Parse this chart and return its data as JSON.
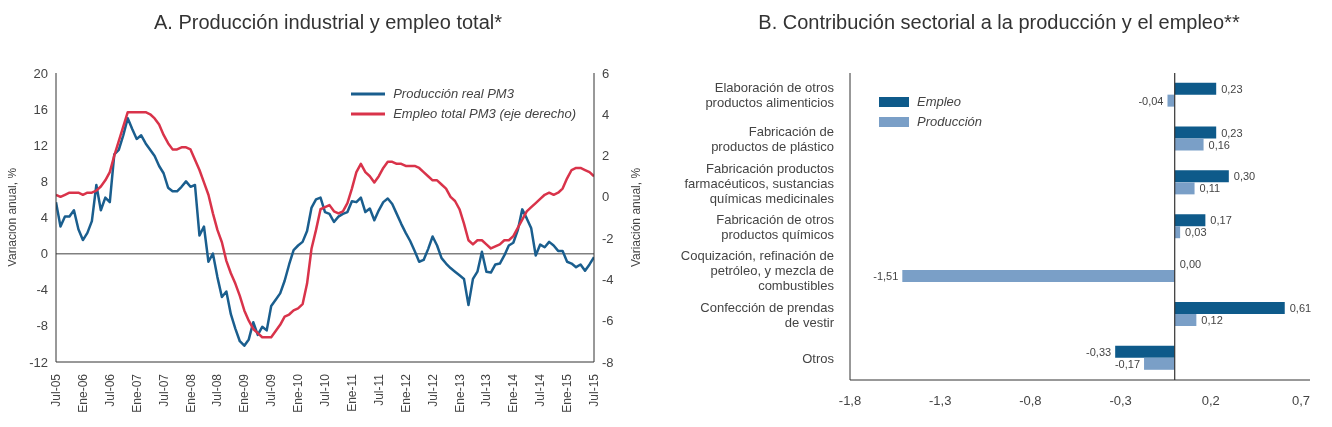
{
  "chart_data": [
    {
      "type": "line",
      "title": "A. Producción industrial y empleo total*",
      "ylabel": "Variación anual, %",
      "y2label": "Variación anual, %",
      "x": [
        "2005-07",
        "2005-08",
        "2005-09",
        "2005-10",
        "2005-11",
        "2005-12",
        "2006-01",
        "2006-02",
        "2006-03",
        "2006-04",
        "2006-05",
        "2006-06",
        "2006-07",
        "2006-08",
        "2006-09",
        "2006-10",
        "2006-11",
        "2006-12",
        "2007-01",
        "2007-02",
        "2007-03",
        "2007-04",
        "2007-05",
        "2007-06",
        "2007-07",
        "2007-08",
        "2007-09",
        "2007-10",
        "2007-11",
        "2007-12",
        "2008-01",
        "2008-02",
        "2008-03",
        "2008-04",
        "2008-05",
        "2008-06",
        "2008-07",
        "2008-08",
        "2008-09",
        "2008-10",
        "2008-11",
        "2008-12",
        "2009-01",
        "2009-02",
        "2009-03",
        "2009-04",
        "2009-05",
        "2009-06",
        "2009-07",
        "2009-08",
        "2009-09",
        "2009-10",
        "2009-11",
        "2009-12",
        "2010-01",
        "2010-02",
        "2010-03",
        "2010-04",
        "2010-05",
        "2010-06",
        "2010-07",
        "2010-08",
        "2010-09",
        "2010-10",
        "2010-11",
        "2010-12",
        "2011-01",
        "2011-02",
        "2011-03",
        "2011-04",
        "2011-05",
        "2011-06",
        "2011-07",
        "2011-08",
        "2011-09",
        "2011-10",
        "2011-11",
        "2011-12",
        "2012-01",
        "2012-02",
        "2012-03",
        "2012-04",
        "2012-05",
        "2012-06",
        "2012-07",
        "2012-08",
        "2012-09",
        "2012-10",
        "2012-11",
        "2012-12",
        "2013-01",
        "2013-02",
        "2013-03",
        "2013-04",
        "2013-05",
        "2013-06",
        "2013-07",
        "2013-08",
        "2013-09",
        "2013-10",
        "2013-11",
        "2013-12",
        "2014-01",
        "2014-02",
        "2014-03",
        "2014-04",
        "2014-05",
        "2014-06",
        "2014-07",
        "2014-08",
        "2014-09",
        "2014-10",
        "2014-11",
        "2014-12",
        "2015-01",
        "2015-02",
        "2015-03",
        "2015-04",
        "2015-05",
        "2015-06",
        "2015-07"
      ],
      "series": [
        {
          "name": "Producción real PM3",
          "color": "#1a5e8e",
          "values": [
            5.7,
            3.0,
            4.1,
            4.1,
            4.8,
            2.7,
            1.5,
            2.3,
            3.6,
            7.6,
            4.8,
            6.2,
            5.7,
            11.0,
            11.5,
            13.1,
            15.0,
            13.8,
            12.7,
            13.1,
            12.2,
            11.5,
            10.8,
            9.7,
            8.9,
            7.3,
            6.9,
            6.9,
            7.4,
            8.0,
            7.4,
            7.6,
            2.0,
            3.0,
            -0.9,
            0.0,
            -2.6,
            -4.8,
            -4.2,
            -6.7,
            -8.3,
            -9.7,
            -10.2,
            -9.5,
            -7.6,
            -9.0,
            -8.1,
            -8.5,
            -5.8,
            -5.1,
            -4.4,
            -3.0,
            -1.2,
            0.4,
            0.9,
            1.3,
            2.5,
            5.1,
            6.0,
            6.2,
            4.6,
            4.4,
            3.5,
            4.1,
            4.4,
            4.6,
            5.8,
            5.7,
            6.2,
            4.6,
            5.0,
            3.7,
            4.8,
            5.7,
            6.1,
            5.5,
            4.4,
            3.3,
            2.3,
            1.4,
            0.3,
            -0.9,
            -0.7,
            0.5,
            1.9,
            0.9,
            -0.5,
            -1.1,
            -1.6,
            -2.0,
            -2.4,
            -2.8,
            -5.7,
            -2.8,
            -2.0,
            0.2,
            -2.0,
            -2.1,
            -1.2,
            -1.1,
            -0.2,
            0.9,
            1.2,
            2.6,
            4.9,
            3.9,
            2.8,
            -0.2,
            1.0,
            0.7,
            1.3,
            0.9,
            0.3,
            0.3,
            -0.9,
            -1.1,
            -1.5,
            -1.2,
            -1.9,
            -1.2,
            -0.4
          ]
        },
        {
          "name": "Empleo total PM3 (eje derecho)",
          "color": "#d9334a",
          "axis": "y2",
          "values": [
            0.1,
            0.0,
            0.1,
            0.2,
            0.2,
            0.2,
            0.1,
            0.2,
            0.2,
            0.3,
            0.5,
            0.8,
            1.2,
            2.0,
            2.7,
            3.4,
            4.1,
            4.1,
            4.1,
            4.1,
            4.1,
            4.0,
            3.8,
            3.5,
            3.0,
            2.6,
            2.3,
            2.3,
            2.4,
            2.4,
            2.3,
            1.8,
            1.3,
            0.7,
            0.1,
            -0.8,
            -1.6,
            -2.2,
            -3.1,
            -3.7,
            -4.2,
            -4.8,
            -5.5,
            -6.0,
            -6.4,
            -6.6,
            -6.8,
            -6.8,
            -6.8,
            -6.5,
            -6.2,
            -5.8,
            -5.7,
            -5.5,
            -5.4,
            -5.2,
            -4.2,
            -2.5,
            -1.6,
            -0.6,
            -0.5,
            -0.4,
            -0.7,
            -0.8,
            -0.7,
            -0.3,
            0.4,
            1.2,
            1.6,
            1.2,
            1.0,
            0.7,
            1.0,
            1.4,
            1.7,
            1.7,
            1.6,
            1.6,
            1.5,
            1.5,
            1.5,
            1.4,
            1.2,
            1.0,
            0.8,
            0.8,
            0.6,
            0.4,
            0.0,
            -0.2,
            -0.6,
            -1.3,
            -2.1,
            -2.3,
            -2.1,
            -2.1,
            -2.3,
            -2.5,
            -2.4,
            -2.3,
            -2.1,
            -2.1,
            -1.9,
            -1.5,
            -1.1,
            -0.7,
            -0.5,
            -0.3,
            -0.1,
            0.1,
            0.2,
            0.1,
            0.2,
            0.4,
            0.9,
            1.3,
            1.4,
            1.4,
            1.3,
            1.2,
            1.0
          ]
        }
      ],
      "xlim": [
        "2005-07",
        "2015-07"
      ],
      "xticks": [
        {
          "value": "2005-07",
          "label": "Jul-05"
        },
        {
          "value": "2006-01",
          "label": "Ene-06"
        },
        {
          "value": "2006-07",
          "label": "Jul-06"
        },
        {
          "value": "2007-01",
          "label": "Ene-07"
        },
        {
          "value": "2007-07",
          "label": "Jul-07"
        },
        {
          "value": "2008-01",
          "label": "Ene-08"
        },
        {
          "value": "2008-07",
          "label": "Jul-08"
        },
        {
          "value": "2009-01",
          "label": "Ene-09"
        },
        {
          "value": "2009-07",
          "label": "Jul-09"
        },
        {
          "value": "2010-01",
          "label": "Ene-10"
        },
        {
          "value": "2010-07",
          "label": "Jul-10"
        },
        {
          "value": "2011-01",
          "label": "Ene-11"
        },
        {
          "value": "2011-07",
          "label": "Jul-11"
        },
        {
          "value": "2012-01",
          "label": "Ene-12"
        },
        {
          "value": "2012-07",
          "label": "Jul-12"
        },
        {
          "value": "2013-01",
          "label": "Ene-13"
        },
        {
          "value": "2013-07",
          "label": "Jul-13"
        },
        {
          "value": "2014-01",
          "label": "Ene-14"
        },
        {
          "value": "2014-07",
          "label": "Jul-14"
        },
        {
          "value": "2015-01",
          "label": "Ene-15"
        },
        {
          "value": "2015-07",
          "label": "Jul-15"
        }
      ],
      "ylim": [
        -12,
        20
      ],
      "yticks": [
        -12,
        -8,
        -4,
        0,
        4,
        8,
        12,
        16,
        20
      ],
      "y2lim": [
        -8,
        6
      ],
      "y2ticks": [
        -8,
        -6,
        -4,
        -2,
        0,
        2,
        4,
        6
      ],
      "ref_lines": [
        {
          "axis": "y",
          "value": 0,
          "color": "#808080"
        }
      ],
      "grid": false,
      "legend": "top right",
      "marker": "none",
      "line_style": "solid"
    },
    {
      "type": "bar",
      "orientation": "horizontal",
      "title": "B. Contribución sectorial a la producción y el empleo**",
      "categories": [
        "Elaboración de otros\nproductos alimenticios",
        "Fabricación de\nproductos de plástico",
        "Fabricación productos\nfarmacéuticos, sustancias\nquímicas medicinales",
        "Fabricación de otros\nproductos químicos",
        "Coquización, refinación de\npetróleo, y mezcla de\ncombustibles",
        "Confección de prendas\nde vestir",
        "Otros"
      ],
      "series": [
        {
          "name": "Empleo",
          "color": "#0e5a8a",
          "values": [
            0.23,
            0.23,
            0.3,
            0.17,
            0.0,
            0.61,
            -0.33
          ],
          "value_labels": [
            "0,23",
            "0,23",
            "0,30",
            "0,17",
            "0,00",
            "0,61",
            "-0,33"
          ]
        },
        {
          "name": "Producción",
          "color": "#7a9fc7",
          "values": [
            -0.04,
            0.16,
            0.11,
            0.03,
            -1.51,
            0.12,
            -0.17
          ],
          "value_labels": [
            "-0,04",
            "0,16",
            "0,11",
            "0,03",
            "-1,51",
            "0,12",
            "-0,17"
          ]
        }
      ],
      "xlim": [
        -1.8,
        0.75
      ],
      "xticks": [
        {
          "value": -1.8,
          "label": "-1,8"
        },
        {
          "value": -1.3,
          "label": "-1,3"
        },
        {
          "value": -0.8,
          "label": "-0,8"
        },
        {
          "value": -0.3,
          "label": "-0,3"
        },
        {
          "value": 0.2,
          "label": "0,2"
        },
        {
          "value": 0.7,
          "label": "0,7"
        }
      ],
      "ref_lines": [
        {
          "axis": "x",
          "value": 0,
          "color": "#333333"
        }
      ],
      "grid": false,
      "legend": "top left"
    }
  ]
}
